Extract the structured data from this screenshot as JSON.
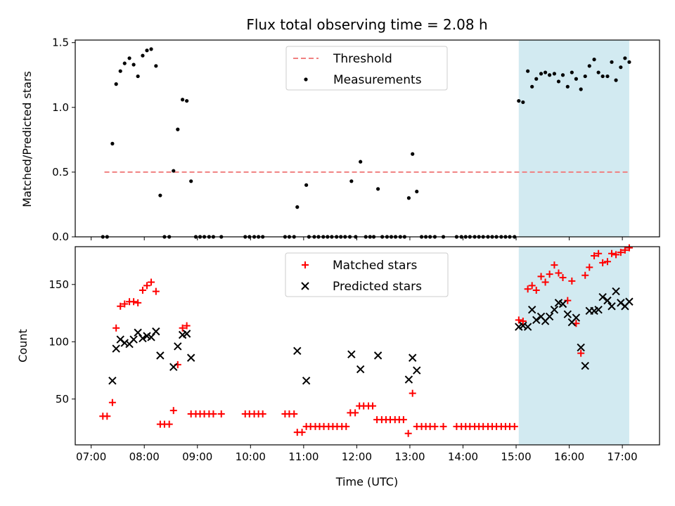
{
  "chart_data": [
    {
      "type": "scatter",
      "title": "Flux total observing time = 2.08 h",
      "xlabel": "",
      "ylabel": "Matched/Predicted stars",
      "xlim": [
        6.7,
        17.7
      ],
      "ylim": [
        0,
        1.52
      ],
      "yticks": [
        0,
        0.5,
        1.0,
        1.5
      ],
      "ytick_labels": [
        "0.0",
        "0.5",
        "1.0",
        "1.5"
      ],
      "xtick_labels_shown": false,
      "shaded_span": {
        "x": [
          15.05,
          17.13
        ],
        "color": "#add8e6"
      },
      "legend_position": "upper center",
      "series": [
        {
          "name": "Threshold",
          "kind": "dashed-line",
          "color": "#f08080",
          "x": [
            7.25,
            17.13
          ],
          "y": [
            0.5,
            0.5
          ]
        },
        {
          "name": "Measurements",
          "kind": "dot",
          "color": "#000000",
          "x": [
            7.22,
            7.3,
            7.4,
            7.47,
            7.55,
            7.63,
            7.72,
            7.8,
            7.88,
            7.97,
            8.05,
            8.13,
            8.22,
            8.3,
            8.38,
            8.47,
            8.55,
            8.63,
            8.72,
            8.8,
            8.88,
            8.97,
            9.05,
            9.13,
            9.22,
            9.3,
            9.45,
            9.9,
            9.98,
            10.07,
            10.15,
            10.23,
            10.65,
            10.73,
            10.82,
            10.88,
            11.05,
            11.1,
            11.2,
            11.28,
            11.37,
            11.45,
            11.53,
            11.62,
            11.7,
            11.78,
            11.87,
            11.9,
            11.98,
            12.07,
            12.17,
            12.25,
            12.32,
            12.4,
            12.48,
            12.57,
            12.65,
            12.73,
            12.82,
            12.9,
            12.98,
            13.05,
            13.13,
            13.22,
            13.3,
            13.38,
            13.47,
            13.63,
            13.88,
            13.97,
            14.05,
            14.13,
            14.22,
            14.3,
            14.38,
            14.47,
            14.55,
            14.63,
            14.72,
            14.8,
            14.88,
            14.97,
            15.05,
            15.13,
            15.22,
            15.3,
            15.38,
            15.47,
            15.55,
            15.63,
            15.72,
            15.8,
            15.88,
            15.97,
            16.05,
            16.13,
            16.22,
            16.3,
            16.38,
            16.47,
            16.55,
            16.63,
            16.72,
            16.8,
            16.88,
            16.97,
            17.05,
            17.13
          ],
          "y": [
            0,
            0,
            0.72,
            1.18,
            1.28,
            1.34,
            1.38,
            1.33,
            1.24,
            1.4,
            1.44,
            1.45,
            1.32,
            0.32,
            0,
            0,
            0.51,
            0.83,
            1.06,
            1.05,
            0.43,
            0,
            0,
            0,
            0,
            0,
            0,
            0,
            0,
            0,
            0,
            0,
            0,
            0,
            0,
            0.23,
            0.4,
            0,
            0,
            0,
            0,
            0,
            0,
            0,
            0,
            0,
            0,
            0.43,
            0,
            0.58,
            0,
            0,
            0,
            0.37,
            0,
            0,
            0,
            0,
            0,
            0,
            0.3,
            0.64,
            0.35,
            0,
            0,
            0,
            0,
            0,
            0,
            0,
            0,
            0,
            0,
            0,
            0,
            0,
            0,
            0,
            0,
            0,
            0,
            0,
            1.05,
            1.04,
            1.28,
            1.16,
            1.22,
            1.26,
            1.27,
            1.25,
            1.26,
            1.2,
            1.25,
            1.16,
            1.27,
            1.22,
            1.14,
            1.24,
            1.32,
            1.37,
            1.27,
            1.24,
            1.24,
            1.35,
            1.21,
            1.31,
            1.38,
            1.35
          ]
        }
      ]
    },
    {
      "type": "scatter",
      "title": "",
      "xlabel": "Time (UTC)",
      "ylabel": "Count",
      "xlim": [
        6.7,
        17.7
      ],
      "ylim": [
        10,
        183
      ],
      "yticks": [
        50,
        100,
        150
      ],
      "ytick_labels": [
        "50",
        "100",
        "150"
      ],
      "xticks": [
        7,
        8,
        9,
        10,
        11,
        12,
        13,
        14,
        15,
        16,
        17
      ],
      "xtick_labels": [
        "07:00",
        "08:00",
        "09:00",
        "10:00",
        "11:00",
        "12:00",
        "13:00",
        "14:00",
        "15:00",
        "16:00",
        "17:00"
      ],
      "shaded_span": {
        "x": [
          15.05,
          17.13
        ],
        "color": "#add8e6"
      },
      "legend_position": "upper center",
      "series": [
        {
          "name": "Matched stars",
          "kind": "plus",
          "color": "#ff0000",
          "x": [
            7.22,
            7.3,
            7.4,
            7.47,
            7.55,
            7.63,
            7.72,
            7.8,
            7.88,
            7.97,
            8.05,
            8.13,
            8.22,
            8.3,
            8.38,
            8.47,
            8.55,
            8.63,
            8.72,
            8.8,
            8.88,
            8.97,
            9.05,
            9.13,
            9.22,
            9.3,
            9.45,
            9.9,
            9.98,
            10.07,
            10.15,
            10.23,
            10.65,
            10.73,
            10.82,
            10.88,
            10.97,
            11.05,
            11.13,
            11.22,
            11.3,
            11.38,
            11.47,
            11.55,
            11.63,
            11.72,
            11.8,
            11.88,
            11.97,
            12.05,
            12.13,
            12.22,
            12.3,
            12.38,
            12.47,
            12.55,
            12.63,
            12.72,
            12.8,
            12.88,
            12.97,
            13.05,
            13.13,
            13.22,
            13.3,
            13.38,
            13.47,
            13.63,
            13.88,
            13.97,
            14.05,
            14.13,
            14.22,
            14.3,
            14.38,
            14.47,
            14.55,
            14.63,
            14.72,
            14.8,
            14.88,
            14.97,
            15.05,
            15.13,
            15.22,
            15.3,
            15.38,
            15.47,
            15.55,
            15.63,
            15.72,
            15.8,
            15.88,
            15.97,
            16.05,
            16.13,
            16.22,
            16.3,
            16.38,
            16.47,
            16.55,
            16.63,
            16.72,
            16.8,
            16.88,
            16.97,
            17.05,
            17.13
          ],
          "y": [
            35,
            35,
            47,
            112,
            131,
            133,
            135,
            135,
            134,
            145,
            149,
            152,
            144,
            28,
            28,
            28,
            40,
            80,
            112,
            114,
            37,
            37,
            37,
            37,
            37,
            37,
            37,
            37,
            37,
            37,
            37,
            37,
            37,
            37,
            37,
            21,
            21,
            26,
            26,
            26,
            26,
            26,
            26,
            26,
            26,
            26,
            26,
            38,
            38,
            44,
            44,
            44,
            44,
            32,
            32,
            32,
            32,
            32,
            32,
            32,
            20,
            55,
            26,
            26,
            26,
            26,
            26,
            26,
            26,
            26,
            26,
            26,
            26,
            26,
            26,
            26,
            26,
            26,
            26,
            26,
            26,
            26,
            119,
            118,
            146,
            149,
            145,
            157,
            152,
            159,
            167,
            160,
            156,
            136,
            153,
            116,
            90,
            158,
            165,
            175,
            177,
            169,
            170,
            177,
            176,
            178,
            180,
            182
          ]
        },
        {
          "name": "Predicted stars",
          "kind": "x",
          "color": "#000000",
          "x": [
            7.4,
            7.47,
            7.55,
            7.63,
            7.72,
            7.8,
            7.88,
            7.97,
            8.05,
            8.13,
            8.22,
            8.3,
            8.55,
            8.63,
            8.72,
            8.8,
            8.88,
            10.88,
            11.05,
            11.9,
            12.07,
            12.4,
            12.98,
            13.05,
            13.13,
            15.05,
            15.13,
            15.22,
            15.3,
            15.38,
            15.47,
            15.55,
            15.63,
            15.72,
            15.8,
            15.88,
            15.97,
            16.05,
            16.13,
            16.22,
            16.3,
            16.38,
            16.47,
            16.55,
            16.63,
            16.72,
            16.8,
            16.88,
            16.97,
            17.05,
            17.13
          ],
          "y": [
            66,
            94,
            102,
            99,
            98,
            102,
            108,
            103,
            105,
            104,
            109,
            88,
            78,
            96,
            106,
            107,
            86,
            92,
            66,
            89,
            76,
            88,
            67,
            86,
            75,
            113,
            114,
            113,
            128,
            119,
            122,
            118,
            122,
            128,
            134,
            133,
            124,
            117,
            121,
            95,
            79,
            127,
            127,
            128,
            139,
            136,
            131,
            144,
            134,
            131,
            135
          ]
        }
      ]
    }
  ]
}
